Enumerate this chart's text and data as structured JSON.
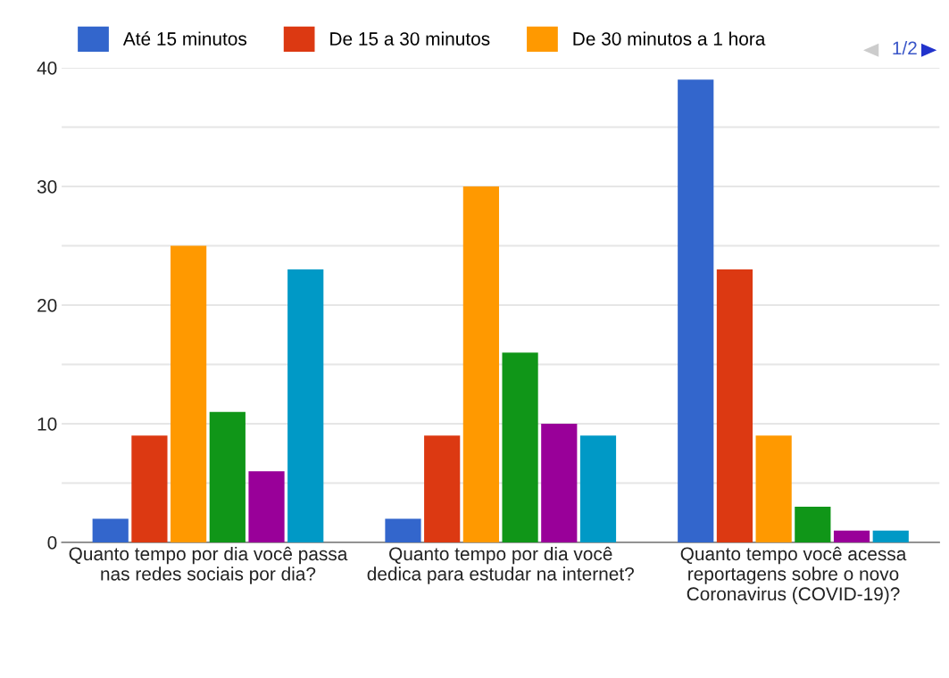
{
  "chart_data": {
    "type": "bar",
    "categories": [
      "Quanto tempo por dia você passa\nnas redes sociais por dia?",
      "Quanto tempo por dia você\ndedica para estudar na internet?",
      "Quanto tempo você acessa\nreportagens sobre o novo\nCoronavirus (COVID-19)?"
    ],
    "series": [
      {
        "name": "Até 15 minutos",
        "color": "#3366cc",
        "values": [
          2,
          2,
          39
        ]
      },
      {
        "name": "De 15 a 30 minutos",
        "color": "#dc3912",
        "values": [
          9,
          9,
          23
        ]
      },
      {
        "name": "De 30 minutos a 1 hora",
        "color": "#ff9900",
        "values": [
          25,
          30,
          9
        ]
      },
      {
        "color": "#109618",
        "values": [
          11,
          16,
          3
        ]
      },
      {
        "color": "#990099",
        "values": [
          6,
          10,
          1
        ]
      },
      {
        "color": "#0099c6",
        "values": [
          23,
          9,
          1
        ]
      }
    ],
    "ylim": [
      0,
      40
    ],
    "yticks": [
      0,
      {
        "value": 5,
        "label": null
      },
      10,
      {
        "value": 15,
        "label": null
      },
      20,
      {
        "value": 25,
        "label": null
      },
      30,
      {
        "value": 35,
        "label": null
      },
      40
    ],
    "grid": "y",
    "legend": "top",
    "annotations": [
      "1/2"
    ]
  }
}
